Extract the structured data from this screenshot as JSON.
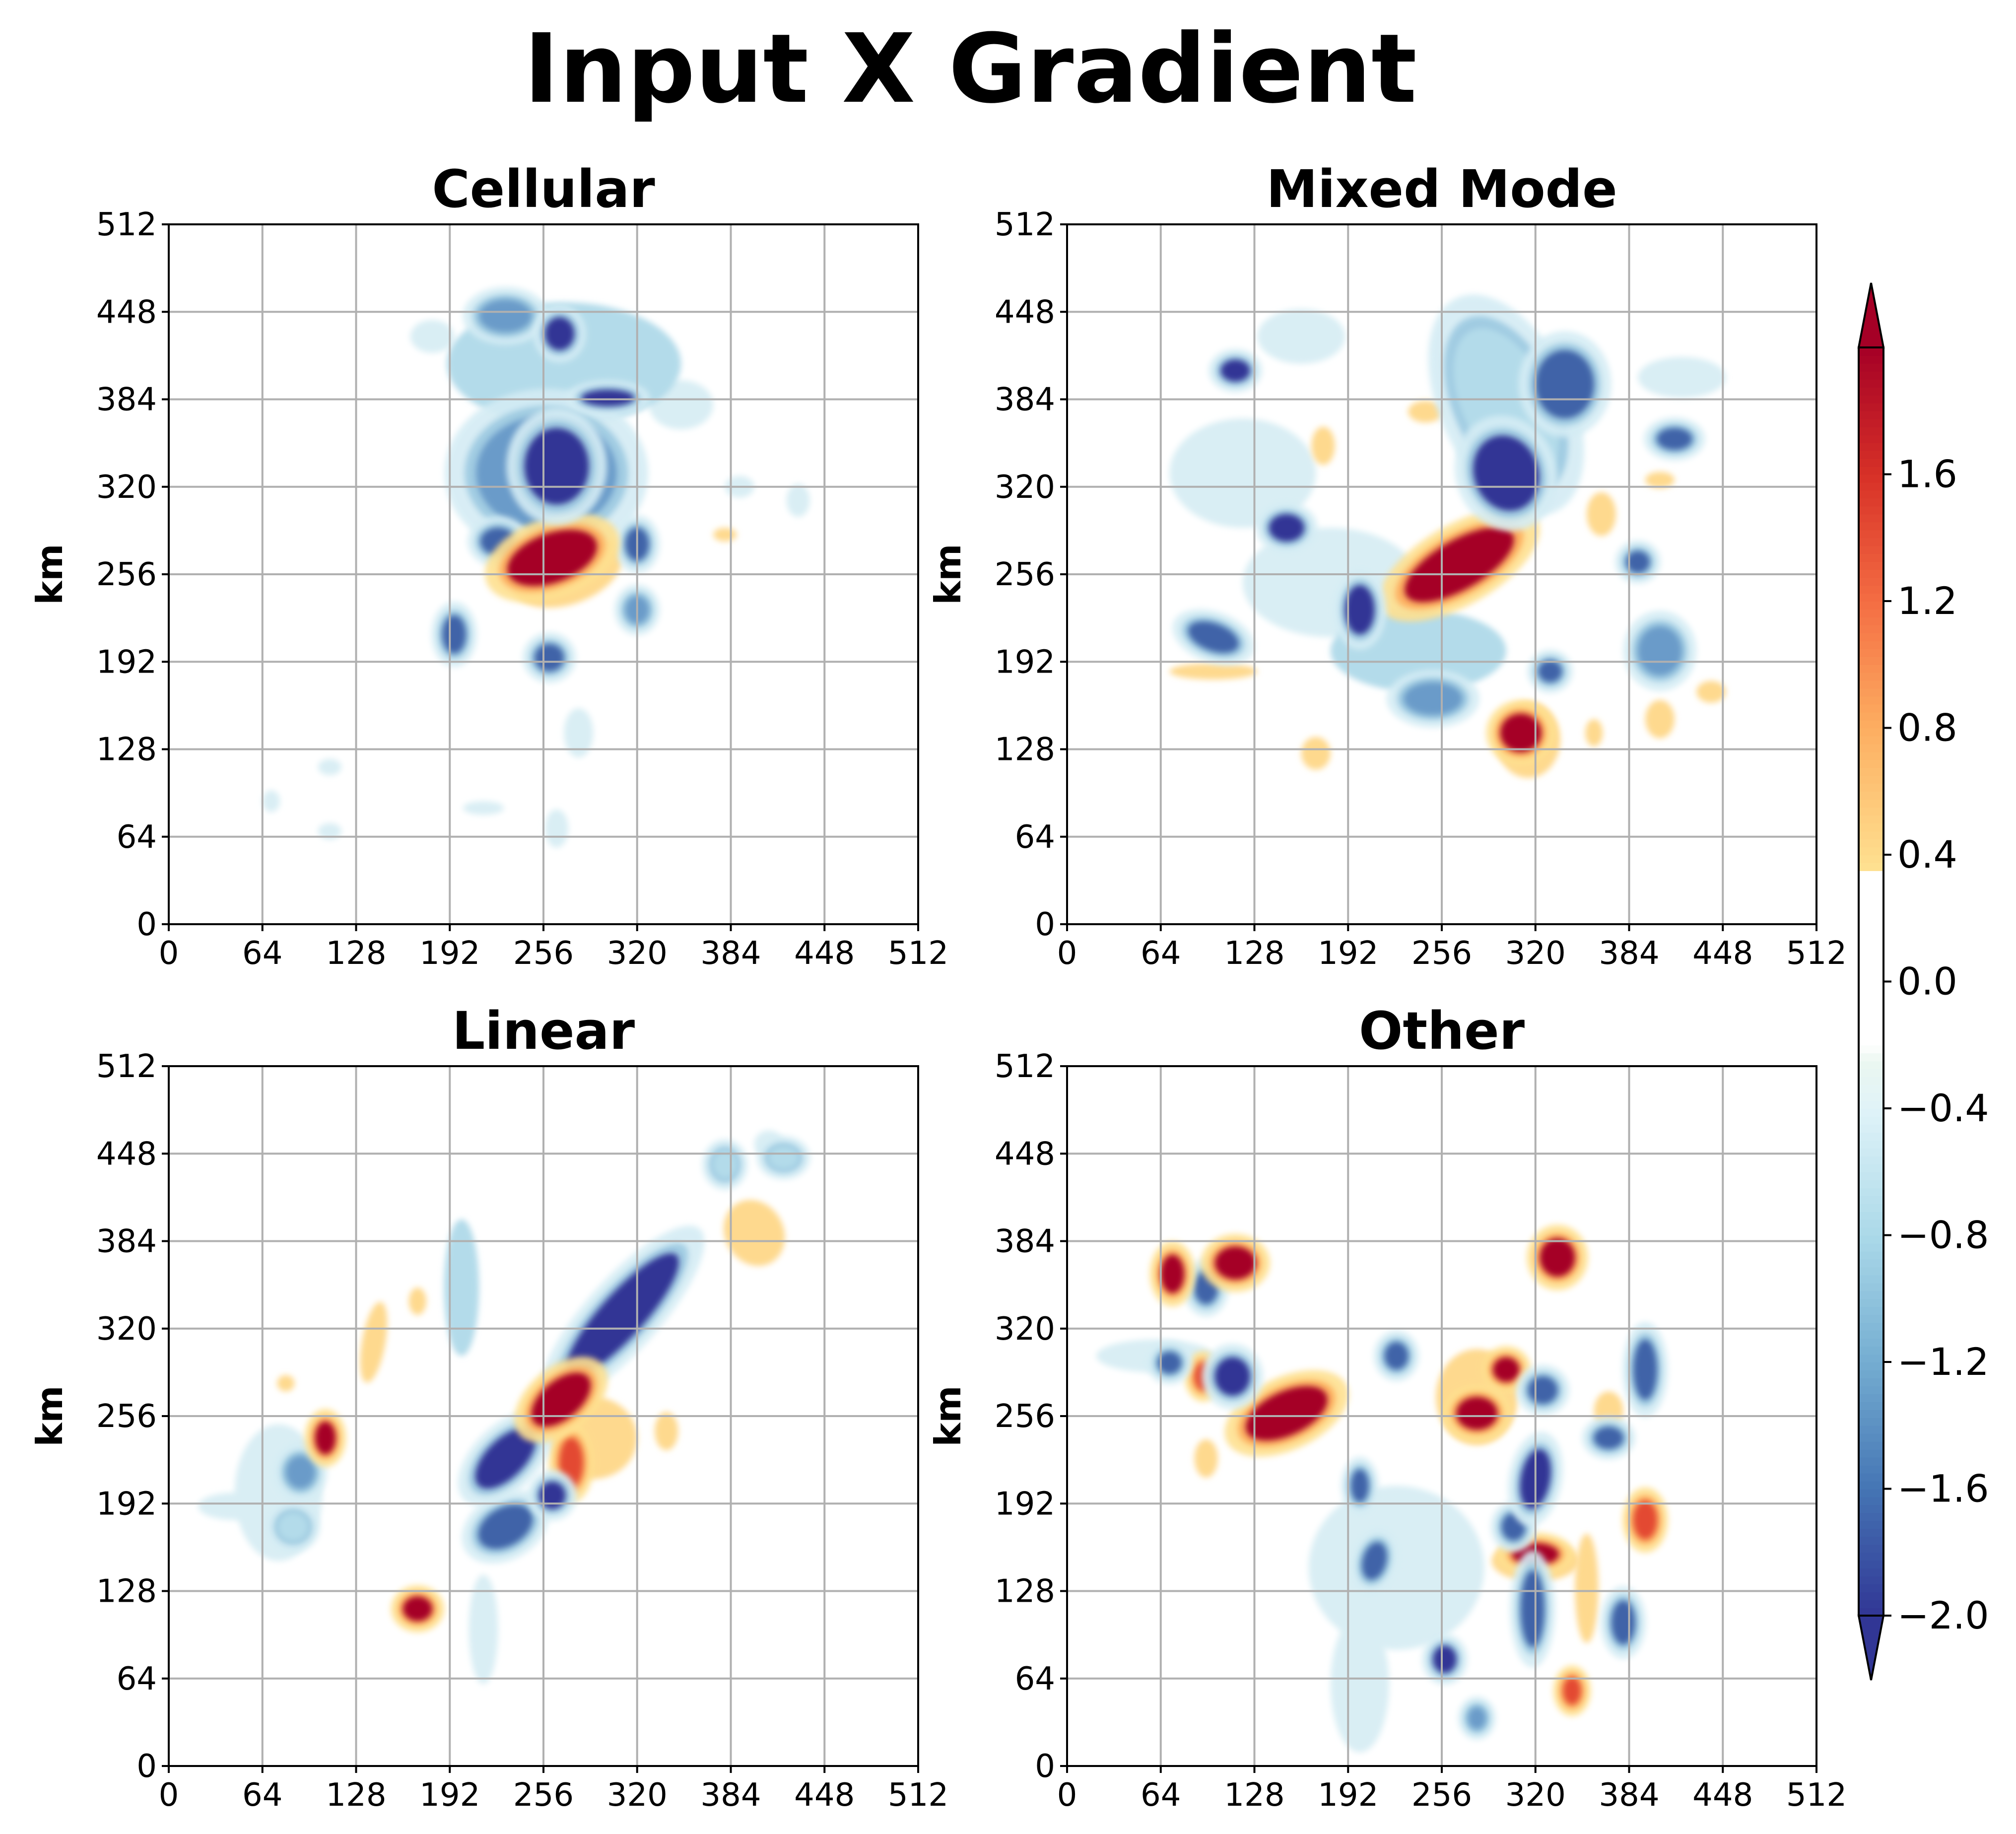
{
  "chart_data": {
    "type": "heatmap",
    "title": "Input X Gradient",
    "xlim": [
      0,
      512
    ],
    "ylim": [
      0,
      512
    ],
    "grid": true,
    "xticks": [
      "0",
      "64",
      "128",
      "192",
      "256",
      "320",
      "384",
      "448",
      "512"
    ],
    "yticks": [
      "0",
      "64",
      "128",
      "192",
      "256",
      "320",
      "384",
      "448",
      "512"
    ],
    "colorbar": {
      "colormap": "RdYlBu_r",
      "range": [
        -2.0,
        2.0
      ],
      "ticks": [
        "−2.0",
        "−1.6",
        "−1.2",
        "−0.8",
        "−0.4",
        "0.0",
        "0.4",
        "0.8",
        "1.2",
        "1.6"
      ],
      "extend": "both"
    },
    "panels": [
      {
        "title": "Cellular",
        "ylabel": "km",
        "blobs": [
          {
            "x": 262,
            "y": 268,
            "rx": 32,
            "ry": 18,
            "rot": -20,
            "v": 2.0
          },
          {
            "x": 272,
            "y": 260,
            "rx": 40,
            "ry": 26,
            "rot": -20,
            "v": 0.5
          },
          {
            "x": 265,
            "y": 335,
            "rx": 22,
            "ry": 28,
            "rot": 0,
            "v": -2.0
          },
          {
            "x": 258,
            "y": 330,
            "rx": 48,
            "ry": 42,
            "rot": 0,
            "v": -1.0
          },
          {
            "x": 300,
            "y": 385,
            "rx": 18,
            "ry": 6,
            "rot": 0,
            "v": -2.0
          },
          {
            "x": 270,
            "y": 410,
            "rx": 80,
            "ry": 45,
            "rot": 0,
            "v": -0.6
          },
          {
            "x": 267,
            "y": 432,
            "rx": 10,
            "ry": 12,
            "rot": 0,
            "v": -2.0
          },
          {
            "x": 225,
            "y": 280,
            "rx": 12,
            "ry": 10,
            "rot": 0,
            "v": -1.8
          },
          {
            "x": 195,
            "y": 212,
            "rx": 8,
            "ry": 14,
            "rot": 0,
            "v": -1.6
          },
          {
            "x": 260,
            "y": 195,
            "rx": 10,
            "ry": 10,
            "rot": 0,
            "v": -1.6
          },
          {
            "x": 320,
            "y": 278,
            "rx": 8,
            "ry": 12,
            "rot": 0,
            "v": -1.6
          },
          {
            "x": 320,
            "y": 230,
            "rx": 8,
            "ry": 10,
            "rot": 0,
            "v": -1.2
          },
          {
            "x": 380,
            "y": 285,
            "rx": 8,
            "ry": 5,
            "rot": 0,
            "v": 0.5
          },
          {
            "x": 430,
            "y": 310,
            "rx": 8,
            "ry": 12,
            "rot": 0,
            "v": -0.5
          },
          {
            "x": 390,
            "y": 320,
            "rx": 10,
            "ry": 8,
            "rot": 0,
            "v": -0.5
          },
          {
            "x": 280,
            "y": 140,
            "rx": 10,
            "ry": 18,
            "rot": 0,
            "v": -0.4
          },
          {
            "x": 265,
            "y": 70,
            "rx": 8,
            "ry": 14,
            "rot": 0,
            "v": -0.3
          },
          {
            "x": 110,
            "y": 115,
            "rx": 8,
            "ry": 6,
            "rot": 0,
            "v": -0.3
          },
          {
            "x": 110,
            "y": 68,
            "rx": 8,
            "ry": 6,
            "rot": 0,
            "v": -0.3
          },
          {
            "x": 70,
            "y": 90,
            "rx": 6,
            "ry": 8,
            "rot": 0,
            "v": -0.25
          },
          {
            "x": 215,
            "y": 85,
            "rx": 14,
            "ry": 5,
            "rot": 0,
            "v": -0.3
          },
          {
            "x": 180,
            "y": 430,
            "rx": 15,
            "ry": 12,
            "rot": 0,
            "v": -0.4
          },
          {
            "x": 350,
            "y": 380,
            "rx": 22,
            "ry": 18,
            "rot": 0,
            "v": -0.5
          },
          {
            "x": 230,
            "y": 445,
            "rx": 18,
            "ry": 12,
            "rot": 0,
            "v": -1.0
          }
        ]
      },
      {
        "title": "Mixed Mode",
        "ylabel": "km",
        "blobs": [
          {
            "x": 268,
            "y": 263,
            "rx": 42,
            "ry": 18,
            "rot": -30,
            "v": 2.0
          },
          {
            "x": 268,
            "y": 263,
            "rx": 48,
            "ry": 24,
            "rot": -30,
            "v": 0.5
          },
          {
            "x": 300,
            "y": 330,
            "rx": 22,
            "ry": 28,
            "rot": -20,
            "v": -2.0
          },
          {
            "x": 300,
            "y": 380,
            "rx": 30,
            "ry": 60,
            "rot": -25,
            "v": -0.9
          },
          {
            "x": 310,
            "y": 140,
            "rx": 14,
            "ry": 14,
            "rot": 0,
            "v": 1.8
          },
          {
            "x": 315,
            "y": 135,
            "rx": 22,
            "ry": 28,
            "rot": 0,
            "v": 0.55
          },
          {
            "x": 200,
            "y": 230,
            "rx": 10,
            "ry": 18,
            "rot": 0,
            "v": -2.0
          },
          {
            "x": 150,
            "y": 290,
            "rx": 12,
            "ry": 10,
            "rot": 0,
            "v": -2.0
          },
          {
            "x": 115,
            "y": 405,
            "rx": 10,
            "ry": 8,
            "rot": 0,
            "v": -2.0
          },
          {
            "x": 100,
            "y": 210,
            "rx": 18,
            "ry": 10,
            "rot": 20,
            "v": -1.8
          },
          {
            "x": 250,
            "y": 165,
            "rx": 20,
            "ry": 12,
            "rot": 0,
            "v": -1.2
          },
          {
            "x": 390,
            "y": 265,
            "rx": 8,
            "ry": 8,
            "rot": 0,
            "v": -1.8
          },
          {
            "x": 415,
            "y": 355,
            "rx": 12,
            "ry": 8,
            "rot": 0,
            "v": -1.6
          },
          {
            "x": 405,
            "y": 200,
            "rx": 15,
            "ry": 18,
            "rot": 0,
            "v": -1.2
          },
          {
            "x": 340,
            "y": 395,
            "rx": 20,
            "ry": 25,
            "rot": 0,
            "v": -1.4
          },
          {
            "x": 330,
            "y": 185,
            "rx": 8,
            "ry": 8,
            "rot": 0,
            "v": -1.6
          },
          {
            "x": 180,
            "y": 250,
            "rx": 60,
            "ry": 40,
            "rot": 0,
            "v": -0.5
          },
          {
            "x": 120,
            "y": 330,
            "rx": 50,
            "ry": 40,
            "rot": 0,
            "v": -0.45
          },
          {
            "x": 240,
            "y": 200,
            "rx": 60,
            "ry": 30,
            "rot": 0,
            "v": -0.6
          },
          {
            "x": 100,
            "y": 185,
            "rx": 30,
            "ry": 6,
            "rot": 0,
            "v": 0.5
          },
          {
            "x": 170,
            "y": 125,
            "rx": 10,
            "ry": 12,
            "rot": 0,
            "v": 0.55
          },
          {
            "x": 405,
            "y": 150,
            "rx": 10,
            "ry": 14,
            "rot": 0,
            "v": 0.6
          },
          {
            "x": 440,
            "y": 170,
            "rx": 10,
            "ry": 8,
            "rot": 0,
            "v": 0.5
          },
          {
            "x": 365,
            "y": 300,
            "rx": 10,
            "ry": 16,
            "rot": 0,
            "v": 0.5
          },
          {
            "x": 245,
            "y": 375,
            "rx": 12,
            "ry": 8,
            "rot": 0,
            "v": 0.55
          },
          {
            "x": 175,
            "y": 350,
            "rx": 8,
            "ry": 14,
            "rot": 0,
            "v": 0.5
          },
          {
            "x": 405,
            "y": 325,
            "rx": 10,
            "ry": 6,
            "rot": 0,
            "v": 0.5
          },
          {
            "x": 360,
            "y": 140,
            "rx": 6,
            "ry": 10,
            "rot": 0,
            "v": 0.5
          },
          {
            "x": 160,
            "y": 430,
            "rx": 30,
            "ry": 20,
            "rot": 0,
            "v": -0.4
          },
          {
            "x": 420,
            "y": 400,
            "rx": 30,
            "ry": 15,
            "rot": 0,
            "v": -0.4
          }
        ]
      },
      {
        "title": "Linear",
        "ylabel": "km",
        "blobs": [
          {
            "x": 310,
            "y": 330,
            "rx": 55,
            "ry": 16,
            "rot": -48,
            "v": -2.0
          },
          {
            "x": 230,
            "y": 225,
            "rx": 26,
            "ry": 14,
            "rot": -45,
            "v": -2.0
          },
          {
            "x": 230,
            "y": 175,
            "rx": 20,
            "ry": 14,
            "rot": -30,
            "v": -1.8
          },
          {
            "x": 262,
            "y": 198,
            "rx": 9,
            "ry": 10,
            "rot": 0,
            "v": -2.0
          },
          {
            "x": 268,
            "y": 268,
            "rx": 24,
            "ry": 14,
            "rot": -40,
            "v": 2.0
          },
          {
            "x": 268,
            "y": 268,
            "rx": 30,
            "ry": 20,
            "rot": -40,
            "v": 0.5
          },
          {
            "x": 107,
            "y": 240,
            "rx": 7,
            "ry": 12,
            "rot": 0,
            "v": 1.8
          },
          {
            "x": 170,
            "y": 115,
            "rx": 10,
            "ry": 9,
            "rot": 0,
            "v": 1.8
          },
          {
            "x": 275,
            "y": 222,
            "rx": 8,
            "ry": 18,
            "rot": 0,
            "v": 1.4
          },
          {
            "x": 290,
            "y": 240,
            "rx": 30,
            "ry": 30,
            "rot": 0,
            "v": 0.55
          },
          {
            "x": 400,
            "y": 390,
            "rx": 20,
            "ry": 25,
            "rot": -30,
            "v": 0.6
          },
          {
            "x": 380,
            "y": 440,
            "rx": 8,
            "ry": 10,
            "rot": 0,
            "v": -0.9
          },
          {
            "x": 420,
            "y": 445,
            "rx": 10,
            "ry": 8,
            "rot": 0,
            "v": -0.9
          },
          {
            "x": 140,
            "y": 310,
            "rx": 8,
            "ry": 30,
            "rot": 10,
            "v": 0.5
          },
          {
            "x": 170,
            "y": 340,
            "rx": 6,
            "ry": 10,
            "rot": 0,
            "v": 0.5
          },
          {
            "x": 200,
            "y": 350,
            "rx": 12,
            "ry": 50,
            "rot": 0,
            "v": -0.7
          },
          {
            "x": 215,
            "y": 100,
            "rx": 10,
            "ry": 40,
            "rot": 0,
            "v": -0.5
          },
          {
            "x": 75,
            "y": 200,
            "rx": 30,
            "ry": 50,
            "rot": 0,
            "v": -0.5
          },
          {
            "x": 90,
            "y": 215,
            "rx": 10,
            "ry": 12,
            "rot": 0,
            "v": -1.0
          },
          {
            "x": 85,
            "y": 175,
            "rx": 10,
            "ry": 10,
            "rot": 0,
            "v": -0.9
          },
          {
            "x": 45,
            "y": 190,
            "rx": 25,
            "ry": 10,
            "rot": 0,
            "v": -0.3
          },
          {
            "x": 80,
            "y": 280,
            "rx": 6,
            "ry": 6,
            "rot": 0,
            "v": 0.5
          },
          {
            "x": 340,
            "y": 245,
            "rx": 8,
            "ry": 14,
            "rot": 0,
            "v": 0.5
          },
          {
            "x": 320,
            "y": 325,
            "rx": 6,
            "ry": 8,
            "rot": 0,
            "v": 0.5
          },
          {
            "x": 410,
            "y": 455,
            "rx": 10,
            "ry": 10,
            "rot": 0,
            "v": -0.4
          }
        ]
      },
      {
        "title": "Other",
        "ylabel": "km",
        "blobs": [
          {
            "x": 150,
            "y": 258,
            "rx": 30,
            "ry": 16,
            "rot": -25,
            "v": 2.0
          },
          {
            "x": 150,
            "y": 258,
            "rx": 36,
            "ry": 22,
            "rot": -25,
            "v": 0.5
          },
          {
            "x": 115,
            "y": 368,
            "rx": 14,
            "ry": 12,
            "rot": 0,
            "v": 2.0
          },
          {
            "x": 72,
            "y": 360,
            "rx": 8,
            "ry": 14,
            "rot": 0,
            "v": 2.0
          },
          {
            "x": 335,
            "y": 372,
            "rx": 12,
            "ry": 14,
            "rot": 0,
            "v": 2.0
          },
          {
            "x": 280,
            "y": 258,
            "rx": 14,
            "ry": 12,
            "rot": 0,
            "v": 2.0
          },
          {
            "x": 280,
            "y": 270,
            "rx": 28,
            "ry": 35,
            "rot": 0,
            "v": 0.55
          },
          {
            "x": 300,
            "y": 290,
            "rx": 9,
            "ry": 9,
            "rot": 0,
            "v": 1.8
          },
          {
            "x": 320,
            "y": 155,
            "rx": 16,
            "ry": 8,
            "rot": 0,
            "v": 1.6
          },
          {
            "x": 320,
            "y": 150,
            "rx": 30,
            "ry": 15,
            "rot": 0,
            "v": 0.55
          },
          {
            "x": 395,
            "y": 180,
            "rx": 8,
            "ry": 14,
            "rot": 0,
            "v": 1.4
          },
          {
            "x": 93,
            "y": 285,
            "rx": 6,
            "ry": 10,
            "rot": 0,
            "v": 1.5
          },
          {
            "x": 345,
            "y": 55,
            "rx": 6,
            "ry": 10,
            "rot": 0,
            "v": 1.3
          },
          {
            "x": 113,
            "y": 285,
            "rx": 12,
            "ry": 14,
            "rot": 0,
            "v": -2.0
          },
          {
            "x": 320,
            "y": 210,
            "rx": 10,
            "ry": 22,
            "rot": 10,
            "v": -1.9
          },
          {
            "x": 325,
            "y": 275,
            "rx": 10,
            "ry": 10,
            "rot": 0,
            "v": -1.8
          },
          {
            "x": 395,
            "y": 290,
            "rx": 8,
            "ry": 22,
            "rot": 0,
            "v": -1.8
          },
          {
            "x": 380,
            "y": 105,
            "rx": 8,
            "ry": 16,
            "rot": 0,
            "v": -1.8
          },
          {
            "x": 318,
            "y": 115,
            "rx": 8,
            "ry": 28,
            "rot": 0,
            "v": -1.6
          },
          {
            "x": 258,
            "y": 78,
            "rx": 8,
            "ry": 10,
            "rot": 0,
            "v": -2.0
          },
          {
            "x": 210,
            "y": 150,
            "rx": 8,
            "ry": 14,
            "rot": 15,
            "v": -1.6
          },
          {
            "x": 70,
            "y": 295,
            "rx": 8,
            "ry": 8,
            "rot": 0,
            "v": -1.6
          },
          {
            "x": 95,
            "y": 350,
            "rx": 8,
            "ry": 12,
            "rot": 0,
            "v": -1.6
          },
          {
            "x": 200,
            "y": 205,
            "rx": 6,
            "ry": 12,
            "rot": 0,
            "v": -1.6
          },
          {
            "x": 225,
            "y": 300,
            "rx": 8,
            "ry": 10,
            "rot": 0,
            "v": -1.4
          },
          {
            "x": 370,
            "y": 240,
            "rx": 10,
            "ry": 8,
            "rot": 0,
            "v": -1.4
          },
          {
            "x": 305,
            "y": 175,
            "rx": 8,
            "ry": 10,
            "rot": 0,
            "v": -1.6
          },
          {
            "x": 225,
            "y": 145,
            "rx": 60,
            "ry": 60,
            "rot": 0,
            "v": -0.4
          },
          {
            "x": 355,
            "y": 130,
            "rx": 8,
            "ry": 40,
            "rot": 0,
            "v": 0.5
          },
          {
            "x": 370,
            "y": 260,
            "rx": 10,
            "ry": 14,
            "rot": 0,
            "v": 0.5
          },
          {
            "x": 95,
            "y": 225,
            "rx": 8,
            "ry": 14,
            "rot": 0,
            "v": 0.5
          },
          {
            "x": 280,
            "y": 35,
            "rx": 6,
            "ry": 8,
            "rot": 0,
            "v": -1.2
          },
          {
            "x": 200,
            "y": 60,
            "rx": 20,
            "ry": 50,
            "rot": 0,
            "v": -0.4
          },
          {
            "x": 60,
            "y": 300,
            "rx": 40,
            "ry": 12,
            "rot": 0,
            "v": -0.3
          }
        ]
      }
    ]
  }
}
